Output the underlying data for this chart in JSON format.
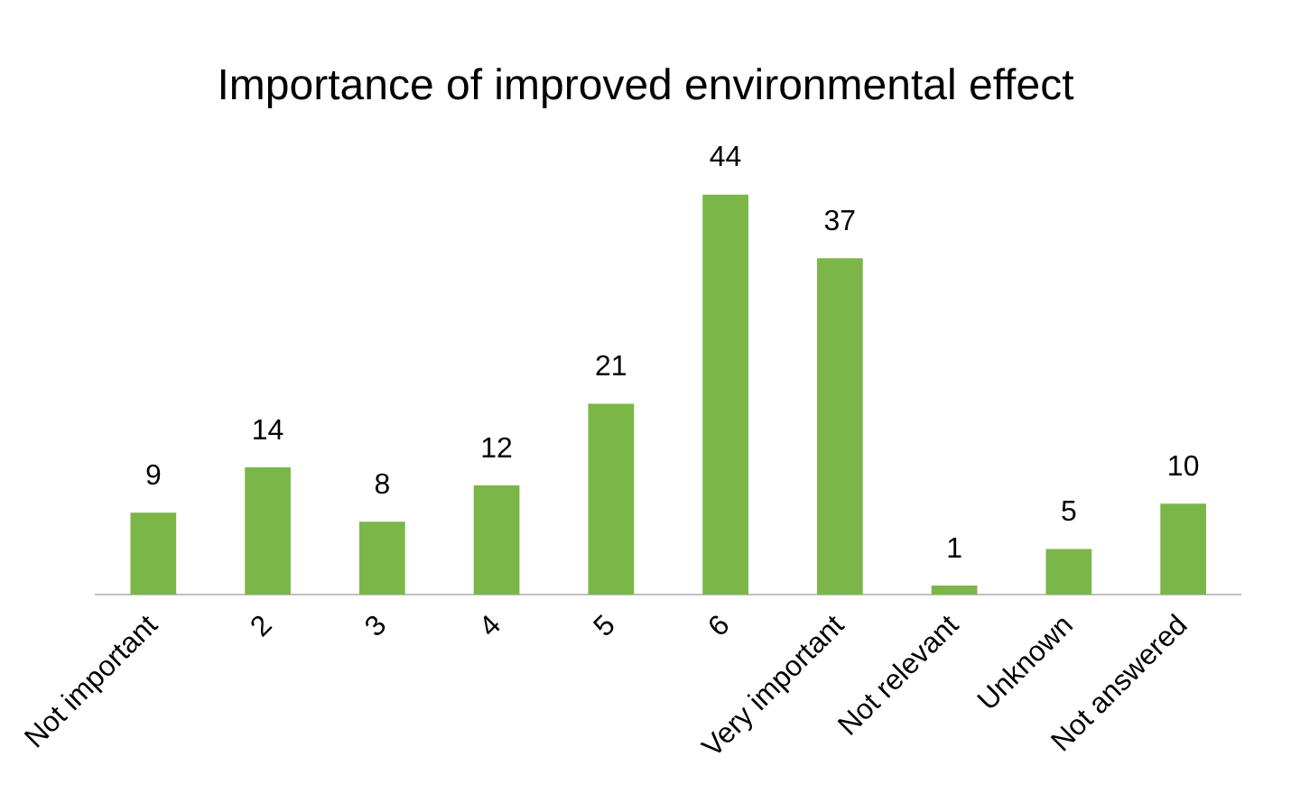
{
  "chart_data": {
    "type": "bar",
    "title": "Importance of improved environmental effect",
    "categories": [
      "Not important",
      "2",
      "3",
      "4",
      "5",
      "6",
      "Very important",
      "Not relevant",
      "Unknown",
      "Not answered"
    ],
    "values": [
      9,
      14,
      8,
      12,
      21,
      44,
      37,
      1,
      5,
      10
    ],
    "color": "#7ab648",
    "data_labels": true,
    "grid": false,
    "legend": false
  }
}
